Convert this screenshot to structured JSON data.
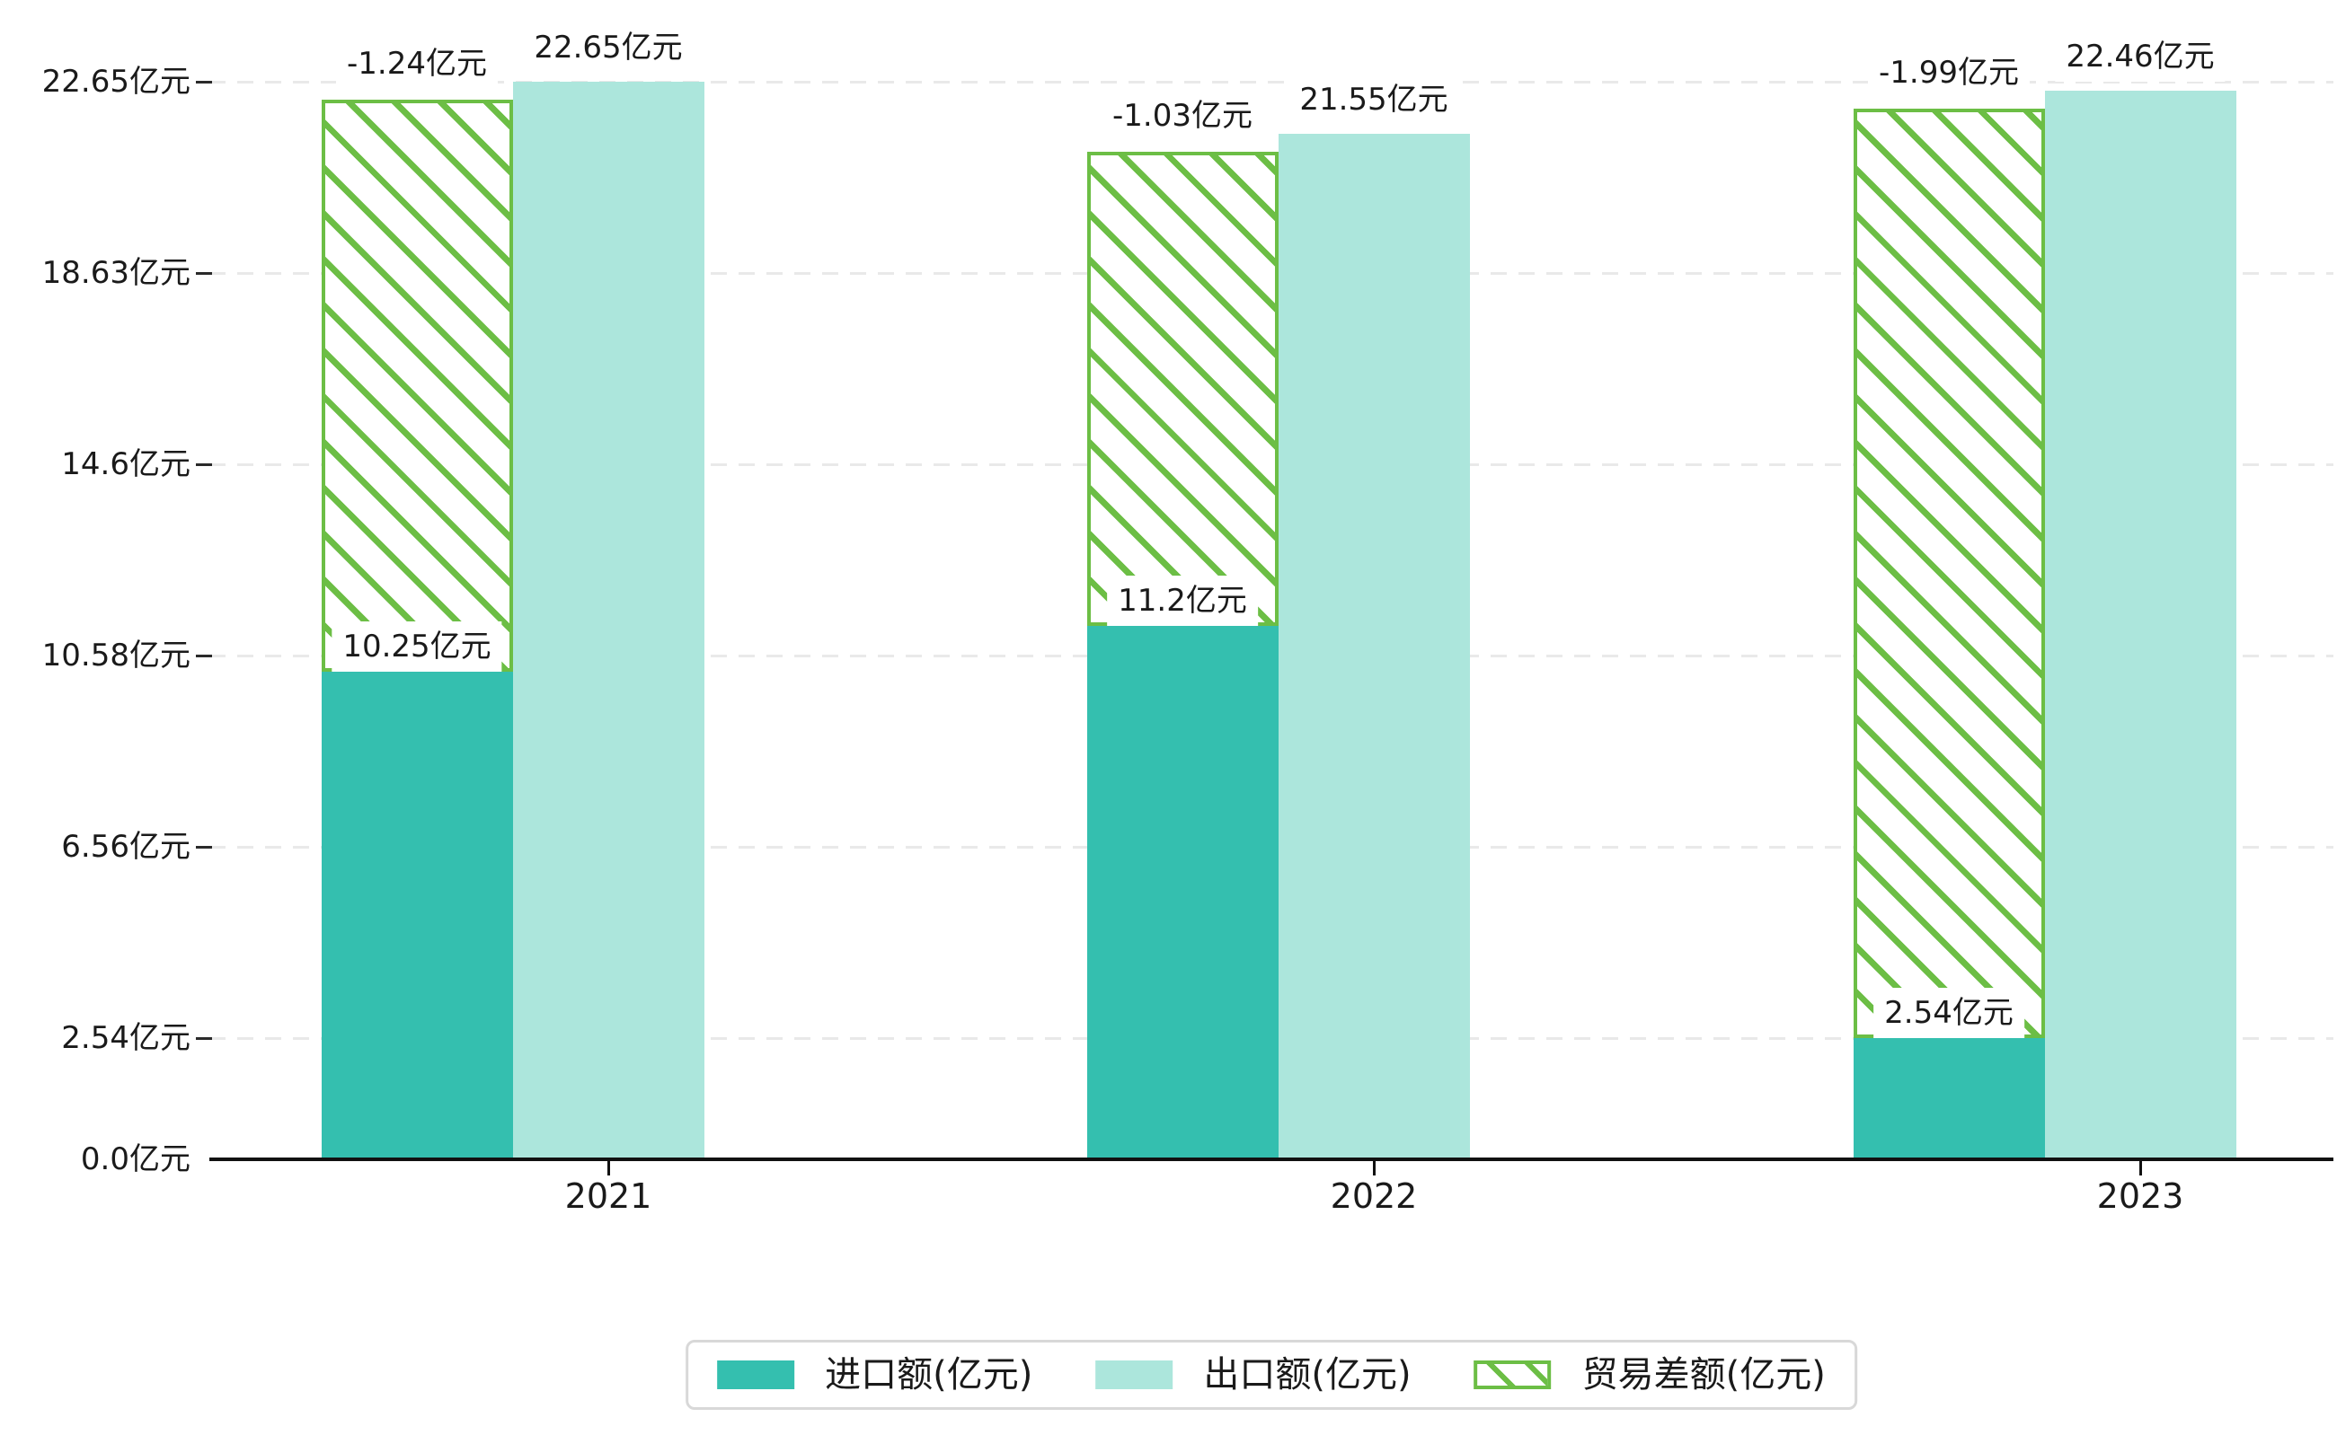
{
  "chart_data": {
    "type": "bar",
    "title": "",
    "unit": "亿元",
    "categories": [
      "2021",
      "2022",
      "2023"
    ],
    "series": [
      {
        "name": "进口额(亿元)",
        "key": "import",
        "color": "#34BFAF",
        "values": [
          10.25,
          11.2,
          2.54
        ],
        "value_labels": [
          "10.25亿元",
          "11.2亿元",
          "2.54亿元"
        ]
      },
      {
        "name": "出口额(亿元)",
        "key": "export",
        "color": "#ACE6DC",
        "values": [
          22.65,
          21.55,
          22.46
        ],
        "value_labels": [
          "22.65亿元",
          "21.55亿元",
          "22.46亿元"
        ]
      },
      {
        "name": "贸易差额(亿元)",
        "key": "trade_balance",
        "color": "#6CBE45",
        "fill": "white with green diagonal hatch, green outline",
        "values": [
          -1.24,
          -1.03,
          -1.99
        ],
        "value_labels": [
          "-1.24亿元",
          "-1.03亿元",
          "-1.99亿元"
        ],
        "drawn_as": "hatched segment stacked from top of import bar up to top of export bar"
      }
    ],
    "y_axis": {
      "tick_values": [
        0,
        2.54,
        6.56,
        10.58,
        14.6,
        18.63,
        22.65
      ],
      "tick_labels": [
        "0.0亿元",
        "2.54亿元",
        "6.56亿元",
        "10.58亿元",
        "14.6亿元",
        "18.63亿元",
        "22.65亿元"
      ],
      "range": [
        0,
        23.2
      ],
      "grid": "dashed light-gray horizontal lines at each tick"
    },
    "x_axis": {
      "tick_labels": [
        "2021",
        "2022",
        "2023"
      ],
      "line_color": "#111111"
    },
    "legend_position": "bottom-center",
    "colors": {
      "import_bar": "#34BFAF",
      "export_bar": "#ACE6DC",
      "trade_balance_hatch": "#6CBE45",
      "gridline": "#e9e9e9",
      "axis": "#111111",
      "legend_border": "#d8d8d8",
      "background": "#ffffff",
      "text": "#1a1a1a"
    }
  }
}
